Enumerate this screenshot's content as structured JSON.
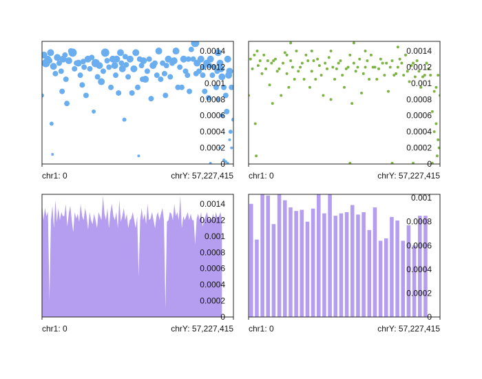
{
  "chart_data": [
    {
      "type": "scatter",
      "color": "#6aaef0",
      "x_start_label": "chr1: 0",
      "x_end_label": "chrY: 57,227,415",
      "xlim": [
        0,
        1
      ],
      "ylim": [
        0,
        0.00152
      ],
      "yticks": [
        "0",
        "0.0002",
        "0.0004",
        "0.0006",
        "0.0008",
        "0.001",
        "0.0012",
        "0.0014"
      ],
      "points": [
        [
          0.0,
          0.00085,
          3
        ],
        [
          0.01,
          0.00135,
          5
        ],
        [
          0.02,
          0.00125,
          6
        ],
        [
          0.03,
          0.0013,
          5
        ],
        [
          0.04,
          0.00128,
          4
        ],
        [
          0.045,
          0.00138,
          5
        ],
        [
          0.05,
          0.0005,
          3
        ],
        [
          0.055,
          0.00012,
          2
        ],
        [
          0.06,
          0.00121,
          5
        ],
        [
          0.07,
          0.00112,
          4
        ],
        [
          0.08,
          0.00132,
          5
        ],
        [
          0.09,
          0.00125,
          4
        ],
        [
          0.1,
          0.00115,
          4
        ],
        [
          0.105,
          0.0009,
          4
        ],
        [
          0.11,
          0.0013,
          5
        ],
        [
          0.12,
          0.00135,
          4
        ],
        [
          0.125,
          0.00105,
          4
        ],
        [
          0.13,
          0.00075,
          4
        ],
        [
          0.14,
          0.00128,
          5
        ],
        [
          0.15,
          0.0014,
          4
        ],
        [
          0.16,
          0.00138,
          6
        ],
        [
          0.17,
          0.00118,
          4
        ],
        [
          0.18,
          0.00125,
          4
        ],
        [
          0.19,
          0.00125,
          5
        ],
        [
          0.2,
          0.0011,
          4
        ],
        [
          0.21,
          0.00098,
          4
        ],
        [
          0.215,
          0.00127,
          4
        ],
        [
          0.22,
          0.0012,
          4
        ],
        [
          0.23,
          0.00085,
          4
        ],
        [
          0.24,
          0.0013,
          5
        ],
        [
          0.25,
          0.00118,
          4
        ],
        [
          0.26,
          0.00132,
          4
        ],
        [
          0.27,
          0.00065,
          3
        ],
        [
          0.28,
          0.00125,
          6
        ],
        [
          0.29,
          0.00108,
          4
        ],
        [
          0.3,
          0.00122,
          5
        ],
        [
          0.31,
          0.00102,
          5
        ],
        [
          0.32,
          0.00115,
          4
        ],
        [
          0.33,
          0.00138,
          6
        ],
        [
          0.34,
          0.00128,
          4
        ],
        [
          0.35,
          0.0012,
          4
        ],
        [
          0.36,
          0.00095,
          4
        ],
        [
          0.37,
          0.0013,
          5
        ],
        [
          0.38,
          0.00122,
          5
        ],
        [
          0.385,
          0.0011,
          4
        ],
        [
          0.39,
          0.0013,
          5
        ],
        [
          0.4,
          0.00088,
          4
        ],
        [
          0.41,
          0.00138,
          5
        ],
        [
          0.415,
          0.00125,
          4
        ],
        [
          0.42,
          0.00118,
          5
        ],
        [
          0.43,
          0.00055,
          3
        ],
        [
          0.435,
          0.00133,
          4
        ],
        [
          0.44,
          0.00123,
          4
        ],
        [
          0.45,
          0.00108,
          4
        ],
        [
          0.46,
          0.0013,
          5
        ],
        [
          0.47,
          0.00088,
          4
        ],
        [
          0.48,
          0.00118,
          5
        ],
        [
          0.49,
          0.00138,
          5
        ],
        [
          0.5,
          0.00095,
          4
        ],
        [
          0.505,
          0.0001,
          2
        ],
        [
          0.51,
          0.0013,
          4
        ],
        [
          0.52,
          0.00122,
          4
        ],
        [
          0.525,
          0.00105,
          4
        ],
        [
          0.53,
          0.00128,
          5
        ],
        [
          0.54,
          0.00105,
          5
        ],
        [
          0.55,
          0.00115,
          4
        ],
        [
          0.56,
          0.0013,
          4
        ],
        [
          0.57,
          0.00081,
          4
        ],
        [
          0.58,
          0.00122,
          5
        ],
        [
          0.59,
          0.00125,
          4
        ],
        [
          0.6,
          0.0011,
          4
        ],
        [
          0.61,
          0.0014,
          5
        ],
        [
          0.62,
          0.00105,
          4
        ],
        [
          0.63,
          0.00125,
          4
        ],
        [
          0.64,
          0.00112,
          4
        ],
        [
          0.645,
          0.00085,
          4
        ],
        [
          0.65,
          0.00122,
          4
        ],
        [
          0.66,
          0.0013,
          5
        ],
        [
          0.67,
          0.00108,
          4
        ],
        [
          0.68,
          0.00125,
          4
        ],
        [
          0.69,
          0.00128,
          5
        ],
        [
          0.7,
          0.0014,
          5
        ],
        [
          0.71,
          0.00095,
          4
        ],
        [
          0.72,
          0.0012,
          4
        ],
        [
          0.73,
          0.00095,
          4
        ],
        [
          0.74,
          0.0013,
          5
        ],
        [
          0.75,
          0.00115,
          4
        ],
        [
          0.76,
          0.0011,
          4
        ],
        [
          0.765,
          0.0013,
          4
        ],
        [
          0.77,
          0.0009,
          4
        ],
        [
          0.78,
          0.00142,
          4
        ],
        [
          0.79,
          0.0013,
          4
        ],
        [
          0.8,
          0.0015,
          6
        ],
        [
          0.805,
          0.00112,
          4
        ],
        [
          0.81,
          0.00125,
          5
        ],
        [
          0.82,
          0.00115,
          4
        ],
        [
          0.83,
          0.0013,
          5
        ],
        [
          0.84,
          0.0011,
          4
        ],
        [
          0.845,
          0.0012,
          4
        ],
        [
          0.85,
          0.0009,
          4
        ],
        [
          0.86,
          0.00125,
          5
        ],
        [
          0.87,
          0.00082,
          4
        ],
        [
          0.875,
          0.00122,
          4
        ],
        [
          0.88,
          0.0013,
          5
        ],
        [
          0.89,
          0.0011,
          4
        ],
        [
          0.9,
          0.0012,
          4
        ],
        [
          0.91,
          0.00095,
          4
        ],
        [
          0.915,
          0.00115,
          4
        ],
        [
          0.92,
          0.00138,
          5
        ],
        [
          0.93,
          0.00125,
          5
        ],
        [
          0.935,
          0.00118,
          5
        ],
        [
          0.94,
          0.00108,
          5
        ],
        [
          0.95,
          0.00095,
          4
        ],
        [
          0.96,
          0.00085,
          4
        ],
        [
          0.965,
          0.00065,
          4
        ],
        [
          0.97,
          0.0013,
          5
        ],
        [
          0.975,
          0.0011,
          5
        ],
        [
          0.98,
          0.00115,
          5
        ],
        [
          0.99,
          0.00095,
          4
        ],
        [
          1.0,
          0.00055,
          3
        ],
        [
          0.98,
          0.0003,
          2
        ],
        [
          0.99,
          0.0002,
          2
        ],
        [
          0.95,
          5e-05,
          2
        ],
        [
          0.96,
          3e-05,
          2
        ],
        [
          0.92,
          0.0008,
          3
        ],
        [
          0.94,
          0.0006,
          3
        ],
        [
          0.985,
          0.0004,
          3
        ],
        [
          0.93,
          0.0002,
          2
        ],
        [
          0.88,
          1e-05,
          2
        ],
        [
          0.97,
          1e-05,
          2
        ]
      ]
    },
    {
      "type": "scatter",
      "color": "#7cb342",
      "x_start_label": "chr1: 0",
      "x_end_label": "chrY: 57,227,415",
      "xlim": [
        0,
        1
      ],
      "ylim": [
        0,
        0.00152
      ],
      "yticks": [
        "0",
        "0.0002",
        "0.0004",
        "0.0006",
        "0.0008",
        "0.001",
        "0.0012",
        "0.0014"
      ],
      "points": [
        [
          0.0,
          0.00085
        ],
        [
          0.01,
          0.0013
        ],
        [
          0.02,
          0.00118
        ],
        [
          0.03,
          0.00135
        ],
        [
          0.035,
          0.0005
        ],
        [
          0.04,
          0.0001
        ],
        [
          0.045,
          0.0014
        ],
        [
          0.05,
          0.00122
        ],
        [
          0.06,
          0.00128
        ],
        [
          0.07,
          0.00112
        ],
        [
          0.08,
          0.00135
        ],
        [
          0.09,
          0.00118
        ],
        [
          0.1,
          0.00128
        ],
        [
          0.11,
          0.00098
        ],
        [
          0.12,
          0.00125
        ],
        [
          0.125,
          0.00075
        ],
        [
          0.13,
          0.00128
        ],
        [
          0.14,
          0.0013
        ],
        [
          0.15,
          0.00115
        ],
        [
          0.16,
          0.00118
        ],
        [
          0.17,
          0.00085
        ],
        [
          0.18,
          0.00125
        ],
        [
          0.19,
          0.00138
        ],
        [
          0.2,
          0.00112
        ],
        [
          0.21,
          0.00095
        ],
        [
          0.22,
          0.00128
        ],
        [
          0.23,
          0.0012
        ],
        [
          0.24,
          0.00105
        ],
        [
          0.25,
          0.0014
        ],
        [
          0.26,
          0.00115
        ],
        [
          0.27,
          0.0012
        ],
        [
          0.28,
          0.00125
        ],
        [
          0.29,
          0.00105
        ],
        [
          0.3,
          0.00135
        ],
        [
          0.31,
          0.00128
        ],
        [
          0.32,
          0.00095
        ],
        [
          0.33,
          0.00115
        ],
        [
          0.34,
          0.00128
        ],
        [
          0.35,
          0.00105
        ],
        [
          0.36,
          0.0013
        ],
        [
          0.37,
          0.00122
        ],
        [
          0.38,
          0.0011
        ],
        [
          0.39,
          0.00085
        ],
        [
          0.4,
          0.00125
        ],
        [
          0.41,
          0.00118
        ],
        [
          0.42,
          0.00132
        ],
        [
          0.43,
          0.0008
        ],
        [
          0.44,
          0.0012
        ],
        [
          0.45,
          0.00105
        ],
        [
          0.46,
          0.00118
        ],
        [
          0.47,
          0.00125
        ],
        [
          0.48,
          0.00128
        ],
        [
          0.49,
          0.0011
        ],
        [
          0.5,
          0.00095
        ],
        [
          0.51,
          0.00118
        ],
        [
          0.52,
          0.0012
        ],
        [
          0.53,
          0.00135
        ],
        [
          0.54,
          0.00075
        ],
        [
          0.55,
          0.00125
        ],
        [
          0.56,
          0.00115
        ],
        [
          0.57,
          0.0012
        ],
        [
          0.58,
          0.0013
        ],
        [
          0.59,
          0.00088
        ],
        [
          0.6,
          0.00112
        ],
        [
          0.61,
          0.0012
        ],
        [
          0.62,
          0.00128
        ],
        [
          0.63,
          0.00105
        ],
        [
          0.64,
          0.00135
        ],
        [
          0.65,
          0.0012
        ],
        [
          0.66,
          0.0012
        ],
        [
          0.67,
          0.00105
        ],
        [
          0.68,
          0.00118
        ],
        [
          0.69,
          0.0013
        ],
        [
          0.7,
          0.00125
        ],
        [
          0.71,
          0.0011
        ],
        [
          0.72,
          0.00125
        ],
        [
          0.73,
          0.0009
        ],
        [
          0.74,
          0.0012
        ],
        [
          0.75,
          0.00128
        ],
        [
          0.76,
          0.0011
        ],
        [
          0.77,
          0.00112
        ],
        [
          0.78,
          0.0012
        ],
        [
          0.79,
          0.0013
        ],
        [
          0.8,
          0.00125
        ],
        [
          0.81,
          0.0011
        ],
        [
          0.82,
          0.00135
        ],
        [
          0.83,
          0.00115
        ],
        [
          0.84,
          0.00102
        ],
        [
          0.85,
          0.00122
        ],
        [
          0.86,
          0.00125
        ],
        [
          0.87,
          0.00108
        ],
        [
          0.88,
          0.00128
        ],
        [
          0.89,
          0.00115
        ],
        [
          0.9,
          0.00095
        ],
        [
          0.91,
          0.00108
        ],
        [
          0.92,
          0.0011
        ],
        [
          0.93,
          0.00125
        ],
        [
          0.94,
          0.00118
        ],
        [
          0.95,
          0.0011
        ],
        [
          0.96,
          0.00065
        ],
        [
          0.97,
          0.0009
        ],
        [
          0.98,
          0.00095
        ],
        [
          0.99,
          0.0011
        ],
        [
          1.0,
          0.00085
        ],
        [
          0.98,
          0.0005
        ],
        [
          0.99,
          0.0003
        ],
        [
          0.97,
          0.0004
        ],
        [
          0.995,
          0.0002
        ],
        [
          0.985,
          0.0001
        ],
        [
          0.86,
          1e-05
        ],
        [
          0.75,
          1e-05
        ],
        [
          0.53,
          1e-05
        ],
        [
          0.96,
          1e-05
        ],
        [
          0.78,
          0.00145
        ],
        [
          0.61,
          0.0014
        ],
        [
          0.43,
          0.0014
        ],
        [
          0.33,
          0.0014
        ],
        [
          0.2,
          0.00135
        ],
        [
          0.55,
          0.0015
        ],
        [
          0.22,
          0.0015
        ]
      ]
    },
    {
      "type": "area",
      "color": "#b59df0",
      "x_start_label": "chr1: 0",
      "x_end_label": "chrY: 57,227,415",
      "xlim": [
        0,
        1
      ],
      "ylim": [
        0,
        0.00152
      ],
      "yticks": [
        "0",
        "0.0002",
        "0.0004",
        "0.0006",
        "0.0008",
        "0.001",
        "0.0012",
        "0.0014"
      ],
      "values": [
        0.0014,
        0.0012,
        0.00135,
        0.00125,
        0.0013,
        0.0002,
        0.0012,
        0.00138,
        0.0011,
        0.00145,
        0.00118,
        0.00135,
        0.0012,
        0.0013,
        0.00125,
        0.00125,
        0.0014,
        0.00112,
        0.00128,
        0.00138,
        0.0012,
        0.00105,
        0.0013,
        0.00122,
        0.00128,
        0.00118,
        0.0014,
        0.00125,
        0.0012,
        0.00135,
        0.00125,
        0.00108,
        0.0013,
        0.0012,
        0.00115,
        0.00128,
        0.0012,
        0.0011,
        0.0013,
        0.00125,
        0.0012,
        0.0015,
        0.00128,
        0.0012,
        0.00135,
        0.0011,
        0.0013,
        0.0014,
        0.00125,
        0.0012,
        0.0013,
        0.0011,
        0.00145,
        0.00118,
        0.00125,
        0.00135,
        0.0012,
        0.00128,
        0.0011,
        0.0012,
        0.00122,
        0.0013,
        0.0012,
        0.0011,
        0.00125,
        0.0005,
        0.0012,
        0.00135,
        0.0012,
        0.00128,
        0.00115,
        0.0014,
        0.0012,
        0.00122,
        0.0013,
        0.0012,
        0.0011,
        0.00125,
        0.0013,
        0.0012,
        0.00128,
        0.00135,
        0.0012,
        0.0001,
        0.00118,
        0.0012,
        0.0013,
        0.00128,
        0.0012,
        0.0014,
        0.00125,
        0.0013,
        0.0012,
        0.0015,
        0.0011,
        0.00125,
        0.0012,
        0.00125,
        0.0013,
        0.0012,
        0.00128,
        0.0012,
        0.0012,
        0.0009,
        0.00122,
        0.00128,
        0.0012,
        0.0013,
        0.00112,
        0.0012,
        0.00125,
        0.0013,
        0.0012,
        0.00122,
        0.0012,
        0.00128,
        0.0012,
        0.0013,
        0.00122,
        0.00125,
        0.0013,
        0.0012
      ]
    },
    {
      "type": "bar",
      "color": "#b59df0",
      "x_start_label": "chr1: 0",
      "x_end_label": "chrY: 57,227,415",
      "xlim": [
        0,
        1
      ],
      "ylim": [
        0,
        0.00103
      ],
      "yticks": [
        "0",
        "0.0002",
        "0.0004",
        "0.0006",
        "0.0008",
        "0.001"
      ],
      "values": [
        0.00095,
        0.00065,
        0.00105,
        0.00102,
        0.00078,
        0.00108,
        0.00098,
        0.00092,
        0.00089,
        0.0009,
        0.0008,
        0.00091,
        0.00106,
        0.00087,
        0.00104,
        0.00085,
        0.00087,
        0.00088,
        0.00094,
        0.00086,
        0.00088,
        0.00073,
        0.00092,
        0.00064,
        0.00066,
        0.00084,
        0.00081,
        0.00064,
        0.00077,
        0.0006,
        0.00085,
        0.00085
      ]
    }
  ]
}
